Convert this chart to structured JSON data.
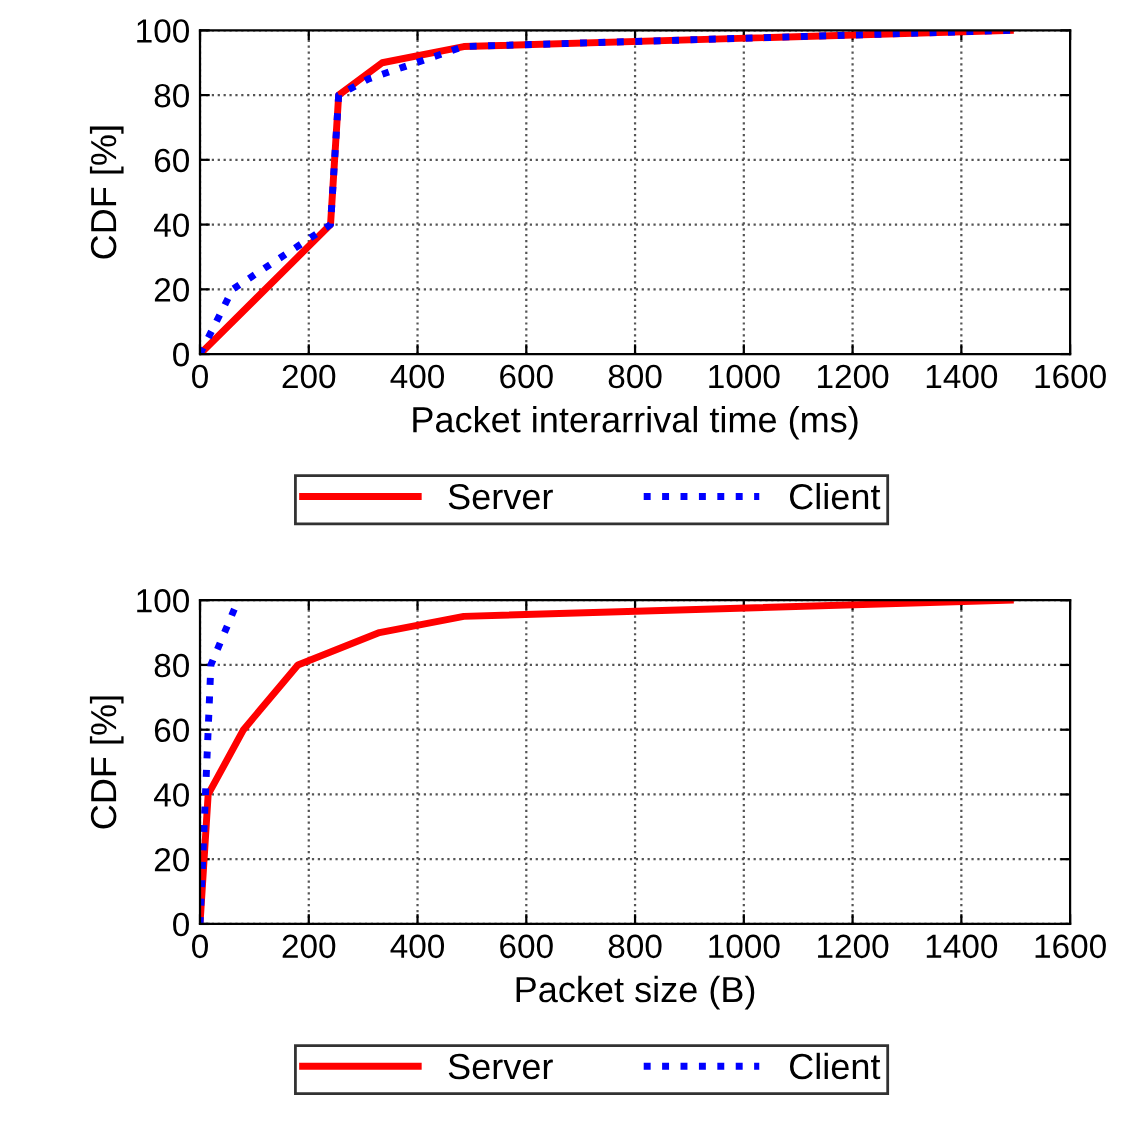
{
  "chart_data": [
    {
      "type": "line",
      "xlabel": "Packet interarrival time (ms)",
      "ylabel": "CDF [%]",
      "xlim": [
        0,
        1600
      ],
      "ylim": [
        0,
        100
      ],
      "xticks": [
        0,
        200,
        400,
        600,
        800,
        1000,
        1200,
        1400,
        1600
      ],
      "yticks": [
        0,
        20,
        40,
        60,
        80,
        100
      ],
      "grid": true,
      "legend": "bottom",
      "series": [
        {
          "name": "Server",
          "color": "#ff0000",
          "line_style": "solid",
          "x": [
            0,
            240,
            255,
            335,
            485,
            1490
          ],
          "values": [
            0,
            40,
            80,
            90,
            95,
            100
          ]
        },
        {
          "name": "Client",
          "color": "#0000ff",
          "line_style": "dotted",
          "x": [
            0,
            60,
            240,
            255,
            310,
            485,
            1490
          ],
          "values": [
            0,
            20,
            40,
            80,
            85,
            95,
            100
          ]
        }
      ]
    },
    {
      "type": "line",
      "xlabel": "Packet size (B)",
      "ylabel": "CDF [%]",
      "xlim": [
        0,
        1600
      ],
      "ylim": [
        0,
        100
      ],
      "xticks": [
        0,
        200,
        400,
        600,
        800,
        1000,
        1200,
        1400,
        1600
      ],
      "yticks": [
        0,
        20,
        40,
        60,
        80,
        100
      ],
      "grid": true,
      "legend": "bottom",
      "series": [
        {
          "name": "Server",
          "color": "#ff0000",
          "line_style": "solid",
          "x": [
            0,
            15,
            80,
            180,
            330,
            485,
            1490
          ],
          "values": [
            0,
            40,
            60,
            80,
            90,
            95,
            100
          ]
        },
        {
          "name": "Client",
          "color": "#0000ff",
          "line_style": "dotted",
          "x": [
            0,
            10,
            20,
            70
          ],
          "values": [
            0,
            40,
            80,
            100
          ]
        }
      ]
    }
  ]
}
